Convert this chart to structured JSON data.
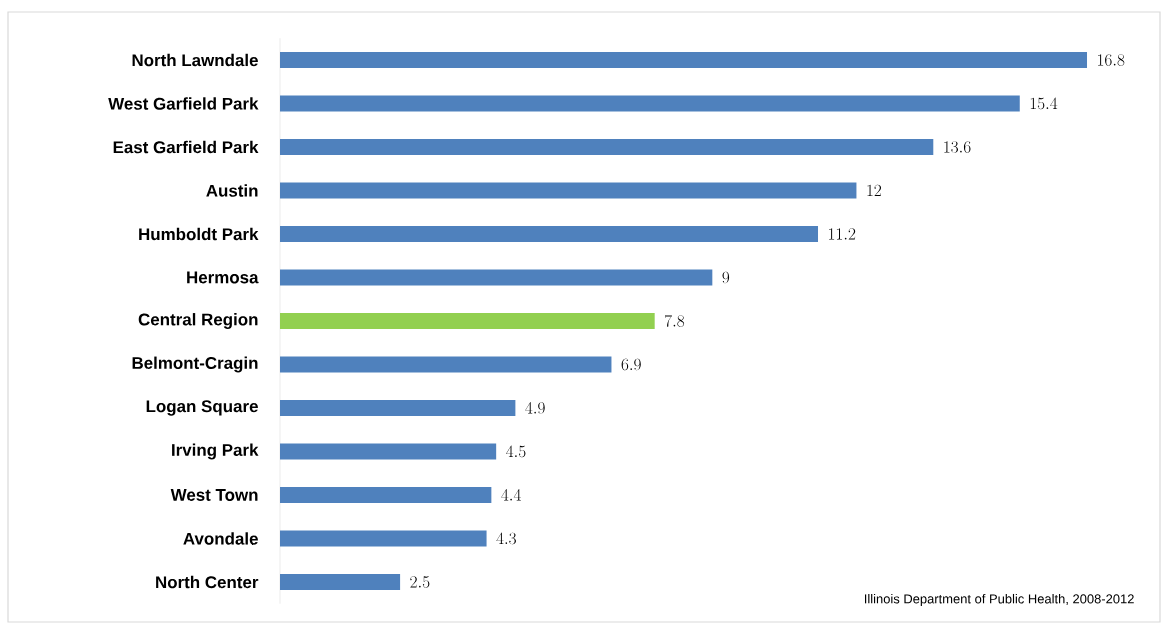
{
  "chart_data": {
    "type": "bar",
    "orientation": "horizontal",
    "categories": [
      "North Lawndale",
      "West Garfield Park",
      "East Garfield Park",
      "Austin",
      "Humboldt Park",
      "Hermosa",
      "Central Region",
      "Belmont-Cragin",
      "Logan Square",
      "Irving Park",
      "West Town",
      "Avondale",
      "North Center"
    ],
    "values": [
      16.8,
      15.4,
      13.6,
      12,
      11.2,
      9,
      7.8,
      6.9,
      4.9,
      4.5,
      4.4,
      4.3,
      2.5
    ],
    "colors": [
      "#4f81bd",
      "#4f81bd",
      "#4f81bd",
      "#4f81bd",
      "#4f81bd",
      "#4f81bd",
      "#92d050",
      "#4f81bd",
      "#4f81bd",
      "#4f81bd",
      "#4f81bd",
      "#4f81bd",
      "#4f81bd"
    ],
    "data_labels": true,
    "annotations": [
      "Illinois Department of Public Health, 2008-2012"
    ]
  }
}
